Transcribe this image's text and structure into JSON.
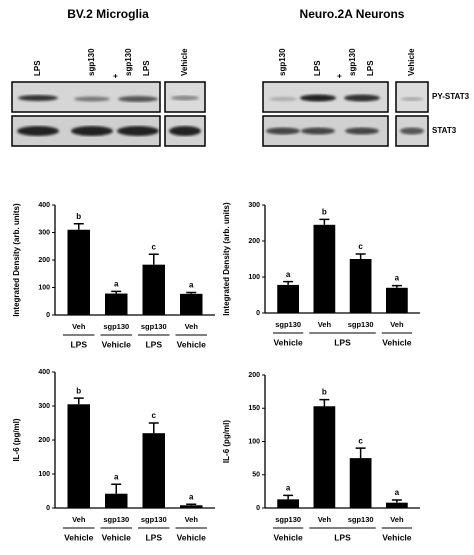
{
  "panels": [
    {
      "title": "BV.2 Microglia",
      "lanes": [
        [
          "LPS"
        ],
        [
          "sgp130"
        ],
        [
          "sgp130",
          "+",
          "LPS"
        ],
        [
          "Vehicle"
        ]
      ]
    },
    {
      "title": "Neuro.2A Neurons",
      "lanes": [
        [
          "sgp130"
        ],
        [
          "LPS"
        ],
        [
          "sgp130",
          "+",
          "LPS"
        ],
        [
          "Vehicle"
        ]
      ],
      "blot_labels": [
        "PY-STAT3",
        "STAT3"
      ]
    }
  ],
  "chart_data": [
    {
      "type": "bar",
      "ylabel": "Integrated Density (arb. units)",
      "categories": [
        "Veh",
        "sgp130",
        "sgp130",
        "Veh"
      ],
      "groups": [
        "LPS",
        "Vehicle",
        "LPS",
        "Vehicle"
      ],
      "values": [
        310,
        78,
        183,
        77
      ],
      "errors": [
        22,
        8,
        38,
        5
      ],
      "annotations": [
        "b",
        "a",
        "c",
        "a"
      ],
      "color": "#000000",
      "ylim": [
        0,
        400
      ],
      "yticks": [
        0,
        100,
        200,
        300,
        400
      ]
    },
    {
      "type": "bar",
      "ylabel": "Integrated Density (arb. units)",
      "categories": [
        "sgp130",
        "Veh",
        "sgp130",
        "Veh"
      ],
      "groups": [
        "Vehicle",
        "LPS",
        null,
        "Vehicle"
      ],
      "values": [
        78,
        245,
        150,
        70
      ],
      "errors": [
        9,
        15,
        14,
        6
      ],
      "annotations": [
        "a",
        "b",
        "c",
        "a"
      ],
      "color": "#000000",
      "ylim": [
        0,
        300
      ],
      "yticks": [
        0,
        100,
        200,
        300
      ]
    },
    {
      "type": "bar",
      "ylabel": "IL-6 (pg/ml)",
      "categories": [
        "Veh",
        "sgp130",
        "sgp130",
        "Veh"
      ],
      "groups": [
        "Vehicle",
        "Vehicle",
        "LPS",
        "Vehicle"
      ],
      "values": [
        305,
        42,
        220,
        8
      ],
      "errors": [
        18,
        28,
        30,
        3
      ],
      "annotations": [
        "b",
        "a",
        "c",
        "a"
      ],
      "color": "#000000",
      "ylim": [
        0,
        400
      ],
      "yticks": [
        0,
        100,
        200,
        300,
        400
      ]
    },
    {
      "type": "bar",
      "ylabel": "IL-6 (pg/ml)",
      "categories": [
        "sgp130",
        "Veh",
        "sgp130",
        "Veh"
      ],
      "groups": [
        "Vehicle",
        "LPS",
        null,
        "Vehicle"
      ],
      "values": [
        13,
        153,
        75,
        8
      ],
      "errors": [
        6,
        10,
        15,
        4
      ],
      "annotations": [
        "a",
        "b",
        "c",
        "a"
      ],
      "color": "#000000",
      "ylim": [
        0,
        200
      ],
      "yticks": [
        0,
        50,
        100,
        150,
        200
      ]
    }
  ]
}
